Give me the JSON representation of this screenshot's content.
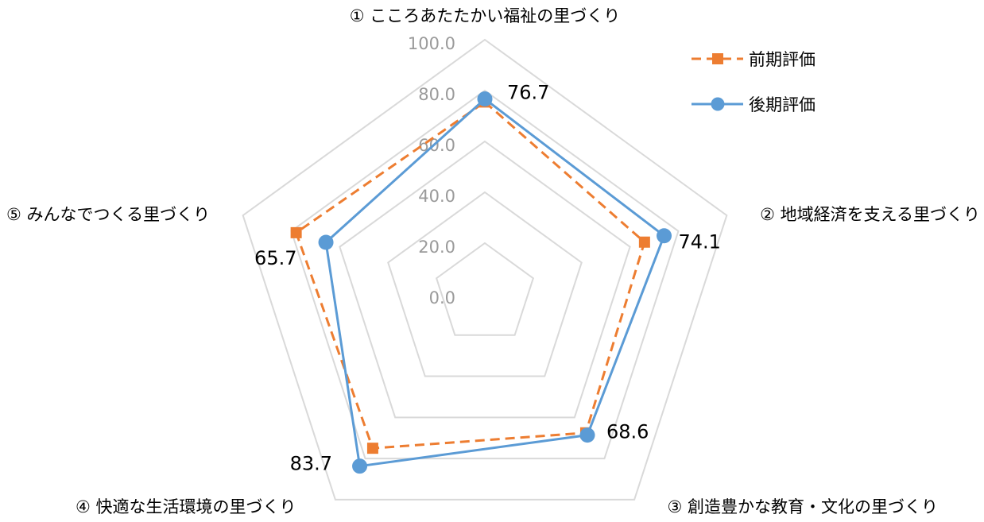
{
  "chart_data": {
    "type": "radar",
    "title": "",
    "axes": [
      "① こころあたたかい福祉の里づくり",
      "② 地域経済を支える里づくり",
      "③ 創造豊かな教育・文化の里づくり",
      "④ 快適な生活環境の里づくり",
      "⑤ みんなでつくる里づくり"
    ],
    "range": [
      0,
      100
    ],
    "ticks": [
      "0.0",
      "20.0",
      "40.0",
      "60.0",
      "80.0",
      "100.0"
    ],
    "tick_values": [
      0,
      20,
      40,
      60,
      80,
      100
    ],
    "series": [
      {
        "name": "前期評価",
        "values": [
          75.5,
          66.0,
          67.5,
          75.0,
          78.0
        ],
        "color": "#ED7D31",
        "line_style": "dashed",
        "marker": "square"
      },
      {
        "name": "後期評価",
        "values": [
          76.7,
          74.1,
          68.6,
          83.7,
          65.7
        ],
        "color": "#5B9BD5",
        "line_style": "solid",
        "marker": "circle"
      }
    ],
    "data_labels": [
      "76.7",
      "74.1",
      "68.6",
      "83.7",
      "65.7"
    ],
    "legend_position": "top-right",
    "grid": true
  }
}
